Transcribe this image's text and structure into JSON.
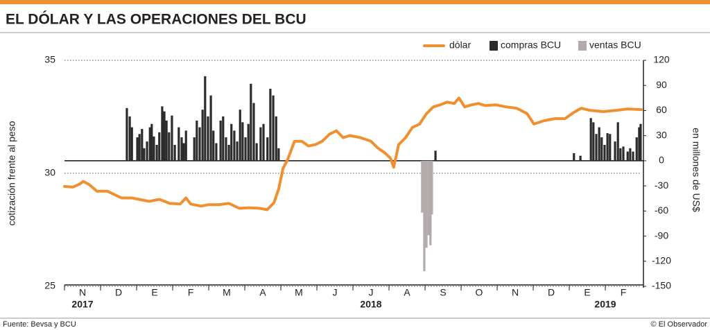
{
  "chart_data": {
    "type": "combo",
    "title": "EL DÓLAR Y LAS OPERACIONES DEL BCU",
    "source": "Fuente: Bevsa y BCU",
    "credit": "© El Observador",
    "ylabel": "cotización frente al peso",
    "y2label": "en millones de US$",
    "xlim": [
      0,
      16
    ],
    "xticks": [
      {
        "value": 0.5,
        "label": "N"
      },
      {
        "value": 1.5,
        "label": "D"
      },
      {
        "value": 2.5,
        "label": "E"
      },
      {
        "value": 3.5,
        "label": "F"
      },
      {
        "value": 4.5,
        "label": "M"
      },
      {
        "value": 5.5,
        "label": "A"
      },
      {
        "value": 6.5,
        "label": "M"
      },
      {
        "value": 7.5,
        "label": "J"
      },
      {
        "value": 8.5,
        "label": "J"
      },
      {
        "value": 9.5,
        "label": "A"
      },
      {
        "value": 10.5,
        "label": "S"
      },
      {
        "value": 11.5,
        "label": "O"
      },
      {
        "value": 12.5,
        "label": "N"
      },
      {
        "value": 13.5,
        "label": "D"
      },
      {
        "value": 14.5,
        "label": "E"
      },
      {
        "value": 15.5,
        "label": "F"
      }
    ],
    "year_ticks": [
      {
        "value": 0.5,
        "label": "2017"
      },
      {
        "value": 8.5,
        "label": "2018"
      },
      {
        "value": 15,
        "label": "2019"
      }
    ],
    "ylim": [
      25,
      35
    ],
    "yticks": [
      25,
      30,
      35
    ],
    "y2lim": [
      -150,
      120
    ],
    "y2ticks": [
      120,
      90,
      60,
      30,
      0,
      -30,
      -60,
      -90,
      -120,
      -150
    ],
    "grid": true,
    "series": [
      {
        "name": "dólar",
        "type": "line",
        "color": "#ef8f2f",
        "x": [
          0,
          0.23,
          0.42,
          0.52,
          0.67,
          0.9,
          1.19,
          1.38,
          1.58,
          1.87,
          2.06,
          2.35,
          2.63,
          2.92,
          3.21,
          3.37,
          3.5,
          3.79,
          3.98,
          4.27,
          4.56,
          4.85,
          5.13,
          5.42,
          5.62,
          5.81,
          5.94,
          6.06,
          6.19,
          6.38,
          6.58,
          6.77,
          6.96,
          7.15,
          7.35,
          7.54,
          7.73,
          7.92,
          8.21,
          8.5,
          8.69,
          8.88,
          9.04,
          9.13,
          9.27,
          9.46,
          9.65,
          9.85,
          10.04,
          10.23,
          10.42,
          10.62,
          10.81,
          10.94,
          11.1,
          11.29,
          11.48,
          11.67,
          11.96,
          12.25,
          12.54,
          12.83,
          13.02,
          13.31,
          13.6,
          13.88,
          14.13,
          14.33,
          14.56,
          14.94,
          15.33,
          15.62,
          16
        ],
        "values": [
          29.42,
          29.39,
          29.52,
          29.64,
          29.52,
          29.21,
          29.21,
          29.06,
          28.91,
          28.91,
          28.85,
          28.76,
          28.85,
          28.67,
          28.64,
          28.91,
          28.64,
          28.55,
          28.61,
          28.61,
          28.67,
          28.45,
          28.48,
          28.45,
          28.39,
          28.7,
          29.3,
          30.21,
          30.61,
          31.42,
          31.42,
          31.21,
          31.27,
          31.42,
          31.73,
          31.88,
          31.58,
          31.67,
          31.58,
          31.42,
          31.12,
          30.91,
          30.67,
          30.27,
          31.27,
          31.58,
          32.03,
          32.18,
          32.64,
          32.94,
          33.03,
          33.15,
          33.09,
          33.33,
          32.94,
          33.03,
          33.09,
          33.0,
          33.03,
          32.94,
          32.88,
          32.64,
          32.18,
          32.33,
          32.42,
          32.42,
          32.7,
          32.88,
          32.79,
          32.73,
          32.79,
          32.85,
          32.82
        ]
      },
      {
        "name": "compras BCU",
        "type": "bar",
        "axis": "y2",
        "color": "#2b2b2b",
        "x": [
          1.73,
          1.81,
          1.87,
          2.02,
          2.08,
          2.15,
          2.21,
          2.29,
          2.37,
          2.42,
          2.48,
          2.56,
          2.63,
          2.71,
          2.77,
          2.83,
          2.9,
          2.98,
          3.06,
          3.17,
          3.25,
          3.31,
          3.37,
          3.6,
          3.67,
          3.75,
          3.83,
          3.9,
          3.98,
          4.06,
          4.13,
          4.21,
          4.33,
          4.4,
          4.48,
          4.56,
          4.63,
          4.71,
          4.79,
          4.87,
          4.94,
          5.02,
          5.1,
          5.17,
          5.25,
          5.33,
          5.44,
          5.52,
          5.63,
          5.71,
          5.79,
          5.87,
          5.94,
          10.29,
          14.13,
          14.31,
          14.6,
          14.67,
          14.75,
          14.83,
          14.9,
          14.98,
          15.06,
          15.13,
          15.27,
          15.35,
          15.42,
          15.5,
          15.62,
          15.69,
          15.77,
          15.87,
          15.94,
          15.98
        ],
        "values": [
          63,
          53,
          40,
          28,
          32,
          38,
          15,
          23,
          40,
          44,
          29,
          19,
          34,
          65,
          59,
          48,
          34,
          54,
          19,
          40,
          28,
          21,
          36,
          28,
          48,
          40,
          61,
          101,
          53,
          78,
          36,
          21,
          48,
          53,
          28,
          19,
          44,
          36,
          23,
          61,
          46,
          28,
          44,
          92,
          69,
          21,
          40,
          44,
          28,
          86,
          78,
          53,
          15,
          12,
          9,
          6,
          51,
          46,
          32,
          40,
          28,
          19,
          33,
          32,
          23,
          46,
          15,
          17,
          11,
          15,
          11,
          28,
          40,
          44
        ]
      },
      {
        "name": "ventas BCU",
        "type": "bar",
        "axis": "y2",
        "color": "#b3abab",
        "x": [
          9.92,
          9.98,
          10.04,
          10.1,
          10.15,
          10.19
        ],
        "values": [
          -62,
          -132,
          -104,
          -89,
          -101,
          -64
        ]
      }
    ]
  }
}
